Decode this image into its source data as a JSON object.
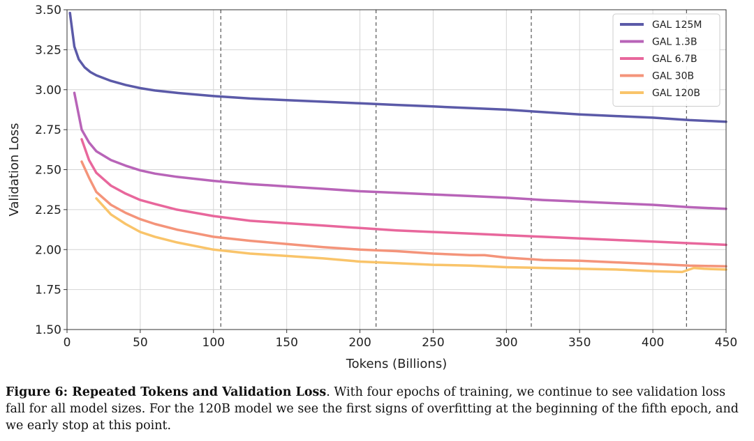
{
  "chart_data": {
    "type": "line",
    "xlabel": "Tokens (Billions)",
    "ylabel": "Validation Loss",
    "xlim": [
      0,
      450
    ],
    "ylim": [
      1.5,
      3.5
    ],
    "xticks": [
      "0",
      "50",
      "100",
      "150",
      "200",
      "250",
      "300",
      "350",
      "400",
      "450"
    ],
    "yticks": [
      "1.50",
      "1.75",
      "2.00",
      "2.25",
      "2.50",
      "2.75",
      "3.00",
      "3.25",
      "3.50"
    ],
    "grid": true,
    "legend_position": "top-right",
    "epoch_boundaries": [
      105,
      211,
      317,
      423
    ],
    "series": [
      {
        "name": "GAL 125M",
        "color": "#5b5aa8",
        "points": [
          [
            2,
            3.48
          ],
          [
            5,
            3.27
          ],
          [
            8,
            3.19
          ],
          [
            12,
            3.14
          ],
          [
            16,
            3.11
          ],
          [
            20,
            3.09
          ],
          [
            30,
            3.055
          ],
          [
            40,
            3.03
          ],
          [
            50,
            3.01
          ],
          [
            60,
            2.995
          ],
          [
            75,
            2.98
          ],
          [
            100,
            2.96
          ],
          [
            125,
            2.945
          ],
          [
            150,
            2.935
          ],
          [
            175,
            2.925
          ],
          [
            200,
            2.915
          ],
          [
            225,
            2.905
          ],
          [
            250,
            2.895
          ],
          [
            275,
            2.885
          ],
          [
            300,
            2.875
          ],
          [
            325,
            2.86
          ],
          [
            350,
            2.845
          ],
          [
            375,
            2.835
          ],
          [
            400,
            2.825
          ],
          [
            425,
            2.81
          ],
          [
            450,
            2.8
          ]
        ]
      },
      {
        "name": "GAL 1.3B",
        "color": "#b864b8",
        "points": [
          [
            5,
            2.98
          ],
          [
            10,
            2.75
          ],
          [
            15,
            2.67
          ],
          [
            20,
            2.615
          ],
          [
            30,
            2.56
          ],
          [
            40,
            2.525
          ],
          [
            50,
            2.495
          ],
          [
            60,
            2.475
          ],
          [
            75,
            2.455
          ],
          [
            100,
            2.43
          ],
          [
            125,
            2.41
          ],
          [
            150,
            2.395
          ],
          [
            175,
            2.38
          ],
          [
            200,
            2.365
          ],
          [
            225,
            2.355
          ],
          [
            250,
            2.345
          ],
          [
            275,
            2.335
          ],
          [
            300,
            2.325
          ],
          [
            325,
            2.31
          ],
          [
            350,
            2.3
          ],
          [
            375,
            2.29
          ],
          [
            400,
            2.28
          ],
          [
            425,
            2.265
          ],
          [
            450,
            2.255
          ]
        ]
      },
      {
        "name": "GAL 6.7B",
        "color": "#e8679c",
        "points": [
          [
            10,
            2.69
          ],
          [
            15,
            2.56
          ],
          [
            20,
            2.48
          ],
          [
            30,
            2.4
          ],
          [
            40,
            2.35
          ],
          [
            50,
            2.31
          ],
          [
            60,
            2.285
          ],
          [
            75,
            2.25
          ],
          [
            100,
            2.21
          ],
          [
            125,
            2.18
          ],
          [
            150,
            2.165
          ],
          [
            175,
            2.15
          ],
          [
            200,
            2.135
          ],
          [
            225,
            2.12
          ],
          [
            250,
            2.11
          ],
          [
            275,
            2.1
          ],
          [
            300,
            2.09
          ],
          [
            325,
            2.08
          ],
          [
            350,
            2.07
          ],
          [
            375,
            2.06
          ],
          [
            400,
            2.05
          ],
          [
            425,
            2.04
          ],
          [
            450,
            2.03
          ]
        ]
      },
      {
        "name": "GAL 30B",
        "color": "#f4947a",
        "points": [
          [
            10,
            2.55
          ],
          [
            15,
            2.45
          ],
          [
            20,
            2.36
          ],
          [
            30,
            2.28
          ],
          [
            40,
            2.23
          ],
          [
            50,
            2.19
          ],
          [
            60,
            2.16
          ],
          [
            75,
            2.125
          ],
          [
            100,
            2.08
          ],
          [
            125,
            2.055
          ],
          [
            150,
            2.035
          ],
          [
            175,
            2.015
          ],
          [
            200,
            2.0
          ],
          [
            225,
            1.99
          ],
          [
            250,
            1.975
          ],
          [
            275,
            1.965
          ],
          [
            285,
            1.965
          ],
          [
            300,
            1.95
          ],
          [
            325,
            1.935
          ],
          [
            350,
            1.93
          ],
          [
            375,
            1.92
          ],
          [
            400,
            1.91
          ],
          [
            425,
            1.9
          ],
          [
            450,
            1.895
          ]
        ]
      },
      {
        "name": "GAL 120B",
        "color": "#f9c46a",
        "points": [
          [
            20,
            2.32
          ],
          [
            30,
            2.22
          ],
          [
            40,
            2.16
          ],
          [
            50,
            2.11
          ],
          [
            60,
            2.08
          ],
          [
            75,
            2.045
          ],
          [
            100,
            2.0
          ],
          [
            125,
            1.975
          ],
          [
            150,
            1.96
          ],
          [
            175,
            1.945
          ],
          [
            200,
            1.925
          ],
          [
            225,
            1.915
          ],
          [
            250,
            1.905
          ],
          [
            275,
            1.9
          ],
          [
            300,
            1.89
          ],
          [
            325,
            1.885
          ],
          [
            350,
            1.88
          ],
          [
            375,
            1.875
          ],
          [
            400,
            1.865
          ],
          [
            420,
            1.86
          ],
          [
            428,
            1.885
          ],
          [
            435,
            1.88
          ],
          [
            450,
            1.875
          ]
        ]
      }
    ]
  },
  "caption": {
    "label": "Figure 6: Repeated Tokens and Validation Loss",
    "text": ". With four epochs of training, we continue to see validation loss fall for all model sizes. For the 120B model we see the first signs of overfitting at the beginning of the fifth epoch, and we early stop at this point."
  }
}
